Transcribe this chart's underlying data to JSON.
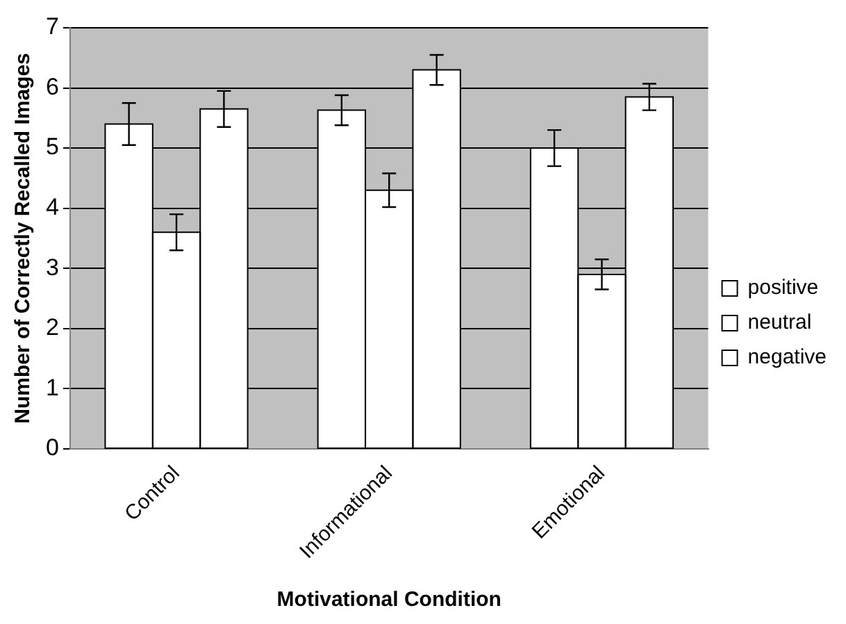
{
  "chart_data": {
    "type": "bar",
    "xlabel": "Motivational Condition",
    "ylabel": "Number of Correctly Recalled Images",
    "categories": [
      "Control",
      "Informational",
      "Emotional"
    ],
    "series": [
      {
        "name": "positive",
        "color": "#ffffff",
        "values": [
          5.4,
          5.63,
          5.0
        ],
        "errors": [
          0.35,
          0.25,
          0.3
        ]
      },
      {
        "name": "neutral",
        "color": "#ffffff",
        "values": [
          3.6,
          4.3,
          2.9
        ],
        "errors": [
          0.3,
          0.28,
          0.25
        ]
      },
      {
        "name": "negative",
        "color": "#ffffff",
        "values": [
          5.65,
          6.3,
          5.85
        ],
        "errors": [
          0.3,
          0.25,
          0.22
        ]
      }
    ],
    "ylim": [
      0,
      7
    ],
    "yticks": [
      0,
      1,
      2,
      3,
      4,
      5,
      6,
      7
    ],
    "grid": "y",
    "legend": "right"
  }
}
